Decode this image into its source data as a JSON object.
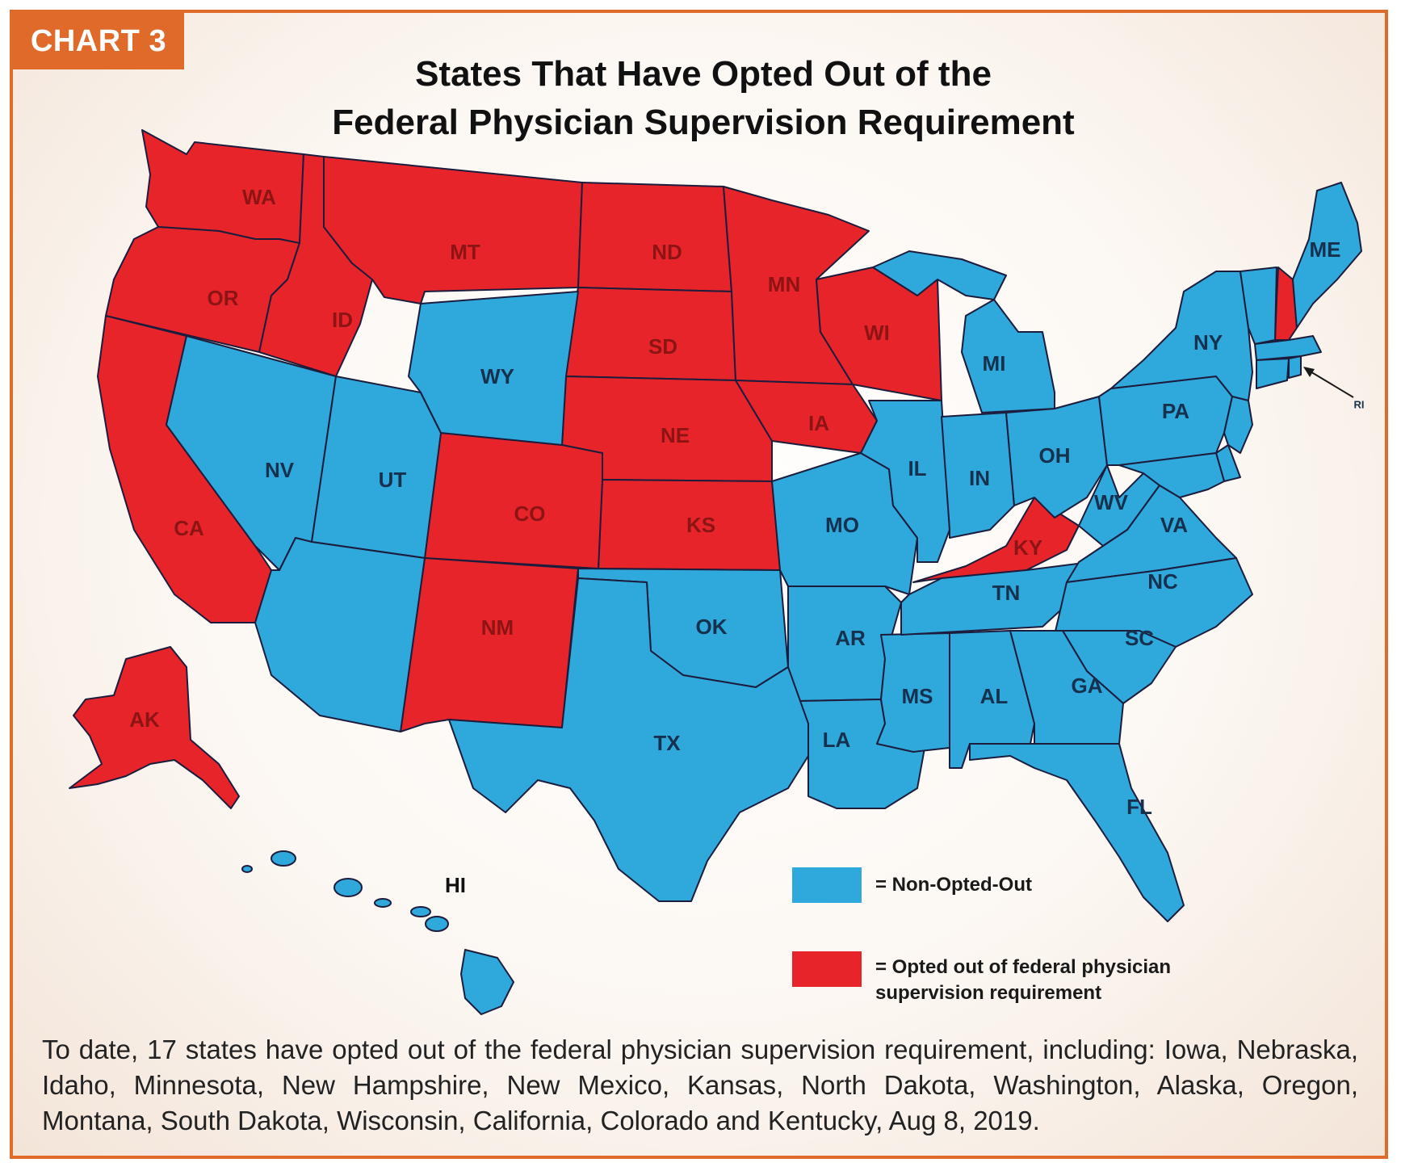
{
  "chart_tag": "CHART 3",
  "title_line1": "States That Have Opted Out of the",
  "title_line2": "Federal Physician Supervision Requirement",
  "colors": {
    "opted_out": "#e8242b",
    "non_opted_out": "#2fa8dc",
    "frame": "#e06a2a"
  },
  "states_opted_out": [
    "WA",
    "OR",
    "CA",
    "ID",
    "MT",
    "ND",
    "SD",
    "NE",
    "KS",
    "MN",
    "IA",
    "WI",
    "CO",
    "NM",
    "KY",
    "NH",
    "AK"
  ],
  "states_non_opted_out": [
    "NV",
    "UT",
    "WY",
    "AZ",
    "TX",
    "OK",
    "MO",
    "AR",
    "LA",
    "MS",
    "AL",
    "TN",
    "IL",
    "IN",
    "OH",
    "MI",
    "GA",
    "FL",
    "SC",
    "NC",
    "VA",
    "WV",
    "PA",
    "NY",
    "VT",
    "MA",
    "CT",
    "RI",
    "NJ",
    "DE",
    "MD",
    "ME",
    "HI"
  ],
  "state_labels": {
    "WA": "WA",
    "OR": "OR",
    "CA": "CA",
    "ID": "ID",
    "MT": "MT",
    "ND": "ND",
    "SD": "SD",
    "NE": "NE",
    "KS": "KS",
    "MN": "MN",
    "IA": "IA",
    "WI": "WI",
    "CO": "CO",
    "NM": "NM",
    "KY": "KY",
    "AK": "AK",
    "NV": "NV",
    "UT": "UT",
    "WY": "WY",
    "TX": "TX",
    "OK": "OK",
    "MO": "MO",
    "AR": "AR",
    "LA": "LA",
    "MS": "MS",
    "AL": "AL",
    "TN": "TN",
    "IL": "IL",
    "IN": "IN",
    "OH": "OH",
    "MI": "MI",
    "GA": "GA",
    "FL": "FL",
    "SC": "SC",
    "NC": "NC",
    "VA": "VA",
    "WV": "WV",
    "PA": "PA",
    "NY": "NY",
    "ME": "ME",
    "RI": "RI",
    "HI": "HI"
  },
  "legend": {
    "non_opted_out": "= Non-Opted-Out",
    "opted_out_line1": "= Opted out of federal physician",
    "opted_out_line2": "supervision requirement"
  },
  "caption": "To date, 17 states have opted out of the federal physician supervision requirement, including: Iowa, Nebraska, Idaho, Minnesota, New Hampshire, New Mexico, Kansas, North Dakota, Washington, Alaska, Oregon, Montana, South Dakota, Wisconsin, California, Colorado and Kentucky, Aug 8, 2019."
}
